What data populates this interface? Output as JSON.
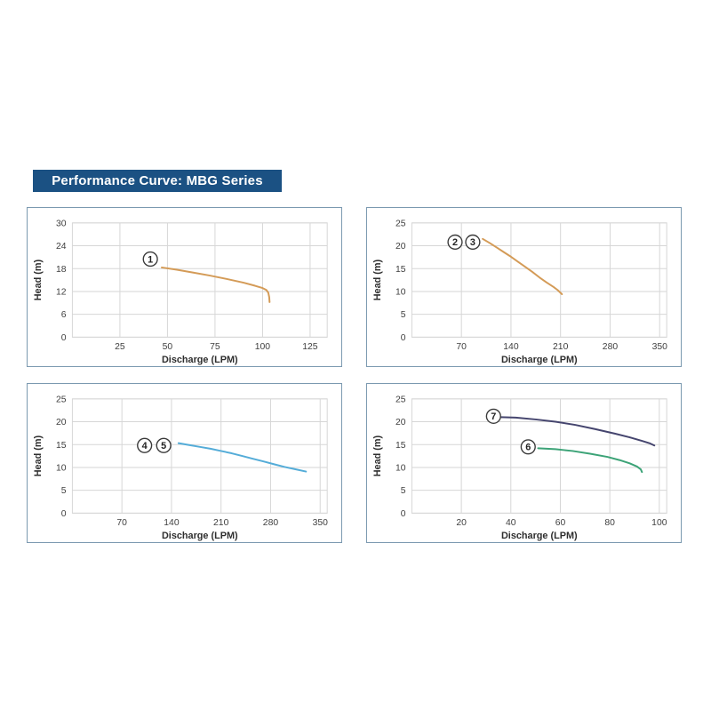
{
  "header": {
    "title": "Performance Curve: MBG Series",
    "bg_color": "#1b5183",
    "text_color": "#ffffff"
  },
  "chart_style": {
    "grid_color": "#d6d6d6",
    "tick_color": "#3f3f3f",
    "axis_title_color": "#2e2e2e",
    "panel_border_color": "#7b99b0",
    "label_circle_stroke": "#3a3a3a"
  },
  "chart_data": [
    {
      "type": "line",
      "title": "",
      "xlabel": "Discharge (LPM)",
      "ylabel": "Head (m)",
      "grid": true,
      "xlim": [
        0,
        134
      ],
      "ylim": [
        0,
        30
      ],
      "x_ticks": [
        25,
        50,
        75,
        100,
        125
      ],
      "y_ticks": [
        0,
        6,
        12,
        18,
        24,
        30
      ],
      "series": [
        {
          "name": "curve-1",
          "color": "#d49b57",
          "points": [
            [
              47,
              18.3
            ],
            [
              55,
              17.7
            ],
            [
              63,
              17.0
            ],
            [
              72,
              16.2
            ],
            [
              81,
              15.3
            ],
            [
              90,
              14.3
            ],
            [
              96,
              13.5
            ],
            [
              100,
              12.9
            ],
            [
              102,
              12.4
            ],
            [
              103,
              11.7
            ],
            [
              103.5,
              10.5
            ],
            [
              103.7,
              9.2
            ]
          ]
        }
      ],
      "labels": [
        {
          "text": "1",
          "x": 41,
          "y": 20.5
        }
      ]
    },
    {
      "type": "line",
      "title": "",
      "xlabel": "Discharge (LPM)",
      "ylabel": "Head (m)",
      "grid": true,
      "xlim": [
        0,
        360
      ],
      "ylim": [
        0,
        25
      ],
      "x_ticks": [
        70,
        140,
        210,
        280,
        350
      ],
      "y_ticks": [
        0,
        5,
        10,
        15,
        20,
        25
      ],
      "series": [
        {
          "name": "curve-2-3",
          "color": "#d49b57",
          "points": [
            [
              100,
              21.5
            ],
            [
              110,
              20.6
            ],
            [
              120,
              19.6
            ],
            [
              130,
              18.6
            ],
            [
              140,
              17.6
            ],
            [
              150,
              16.5
            ],
            [
              160,
              15.4
            ],
            [
              170,
              14.3
            ],
            [
              180,
              13.1
            ],
            [
              190,
              12.0
            ],
            [
              200,
              11.0
            ],
            [
              206,
              10.3
            ],
            [
              212,
              9.4
            ]
          ]
        }
      ],
      "labels": [
        {
          "text": "2",
          "x": 61,
          "y": 20.8
        },
        {
          "text": "3",
          "x": 86,
          "y": 20.8
        }
      ]
    },
    {
      "type": "line",
      "title": "",
      "xlabel": "Discharge (LPM)",
      "ylabel": "Head (m)",
      "grid": true,
      "xlim": [
        0,
        360
      ],
      "ylim": [
        0,
        25
      ],
      "x_ticks": [
        70,
        140,
        210,
        280,
        350
      ],
      "y_ticks": [
        0,
        5,
        10,
        15,
        20,
        25
      ],
      "series": [
        {
          "name": "curve-4-5",
          "color": "#54acd8",
          "points": [
            [
              150,
              15.3
            ],
            [
              165,
              14.9
            ],
            [
              180,
              14.5
            ],
            [
              195,
              14.1
            ],
            [
              210,
              13.6
            ],
            [
              225,
              13.1
            ],
            [
              240,
              12.5
            ],
            [
              255,
              11.9
            ],
            [
              270,
              11.3
            ],
            [
              285,
              10.7
            ],
            [
              300,
              10.1
            ],
            [
              315,
              9.6
            ],
            [
              330,
              9.1
            ]
          ]
        }
      ],
      "labels": [
        {
          "text": "4",
          "x": 102,
          "y": 14.8
        },
        {
          "text": "5",
          "x": 129,
          "y": 14.8
        }
      ]
    },
    {
      "type": "line",
      "title": "",
      "xlabel": "Discharge (LPM)",
      "ylabel": "Head (m)",
      "grid": true,
      "xlim": [
        0,
        103
      ],
      "ylim": [
        0,
        25
      ],
      "x_ticks": [
        20,
        40,
        60,
        80,
        100
      ],
      "y_ticks": [
        0,
        5,
        10,
        15,
        20,
        25
      ],
      "series": [
        {
          "name": "curve-7",
          "color": "#45456e",
          "points": [
            [
              36,
              21.0
            ],
            [
              42,
              20.9
            ],
            [
              50,
              20.5
            ],
            [
              58,
              20.0
            ],
            [
              66,
              19.3
            ],
            [
              74,
              18.4
            ],
            [
              82,
              17.4
            ],
            [
              88,
              16.6
            ],
            [
              93,
              15.8
            ],
            [
              96,
              15.3
            ],
            [
              98,
              14.8
            ]
          ]
        },
        {
          "name": "curve-6",
          "color": "#3ca377",
          "points": [
            [
              51,
              14.2
            ],
            [
              58,
              14.0
            ],
            [
              65,
              13.6
            ],
            [
              72,
              13.0
            ],
            [
              79,
              12.3
            ],
            [
              84,
              11.6
            ],
            [
              88,
              10.9
            ],
            [
              91,
              10.2
            ],
            [
              92.5,
              9.6
            ],
            [
              93,
              9.0
            ]
          ]
        }
      ],
      "labels": [
        {
          "text": "7",
          "x": 33,
          "y": 21.2
        },
        {
          "text": "6",
          "x": 47,
          "y": 14.5
        }
      ]
    }
  ]
}
